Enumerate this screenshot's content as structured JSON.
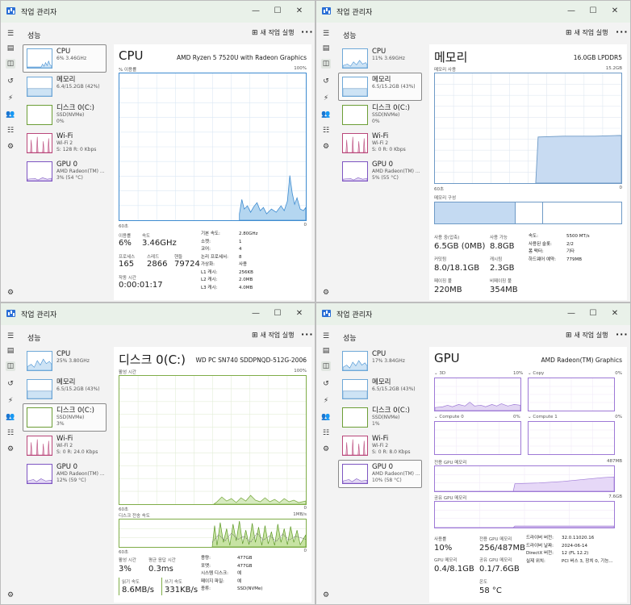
{
  "app_title": "작업 관리자",
  "page_title": "성능",
  "run_task": "새 작업 실행",
  "controls": {
    "minimize": "—",
    "maximize": "☐",
    "close": "✕"
  },
  "more": "···",
  "colors": {
    "cpu": "#3d8bd0",
    "memory": "#6e9ac6",
    "disk": "#7fad48",
    "wifi": "#b9477a",
    "gpu": "#9e79d6"
  },
  "panes": [
    {
      "sidebar": [
        {
          "name": "CPU",
          "sub1": "6% 3.46GHz",
          "sub2": ""
        },
        {
          "name": "메모리",
          "sub1": "6.4/15.2GB (42%)",
          "sub2": ""
        },
        {
          "name": "디스크 0(C:)",
          "sub1": "SSD(NVMe)",
          "sub2": "0%"
        },
        {
          "name": "Wi-Fi",
          "sub1": "Wi-Fi 2",
          "sub2": "S: 128 R: 0 Kbps"
        },
        {
          "name": "GPU 0",
          "sub1": "AMD Radeon(TM) ...",
          "sub2": "3% (54 °C)"
        }
      ],
      "heading": "CPU",
      "model": "AMD Ryzen 5 7520U with Radeon Graphics",
      "chart_caption_left": "% 이용률",
      "chart_caption_right": "100%",
      "chart_bottom_left": "60초",
      "chart_bottom_right": "0",
      "stats": {
        "util_label": "이용률",
        "util_value": "6%",
        "speed_label": "속도",
        "speed_value": "3.46GHz",
        "proc_label": "프로세스",
        "proc_value": "165",
        "thread_label": "스레드",
        "thread_value": "2866",
        "handle_label": "핸들",
        "handle_value": "79724",
        "uptime_label": "작동 시간",
        "uptime_value": "0:00:01:17"
      },
      "details": [
        {
          "k": "기본 속도:",
          "v": "2.80GHz"
        },
        {
          "k": "소켓:",
          "v": "1"
        },
        {
          "k": "코어:",
          "v": "4"
        },
        {
          "k": "논리 프로세서:",
          "v": "8"
        },
        {
          "k": "가상화:",
          "v": "사용"
        },
        {
          "k": "L1 캐시:",
          "v": "256KB"
        },
        {
          "k": "L2 캐시:",
          "v": "2.0MB"
        },
        {
          "k": "L3 캐시:",
          "v": "4.0MB"
        }
      ]
    },
    {
      "sidebar": [
        {
          "name": "CPU",
          "sub1": "11% 3.69GHz",
          "sub2": ""
        },
        {
          "name": "메모리",
          "sub1": "6.5/15.2GB (43%)",
          "sub2": ""
        },
        {
          "name": "디스크 0(C:)",
          "sub1": "SSD(NVMe)",
          "sub2": "0%"
        },
        {
          "name": "Wi-Fi",
          "sub1": "Wi-Fi 2",
          "sub2": "S: 0 R: 0 Kbps"
        },
        {
          "name": "GPU 0",
          "sub1": "AMD Radeon(TM) ...",
          "sub2": "5% (55 °C)"
        }
      ],
      "heading": "메모리",
      "model": "16.0GB LPDDR5",
      "chart_caption_left": "메모리 사용",
      "chart_caption_right": "15.2GB",
      "chart_bottom_left": "60초",
      "chart_bottom_right": "0",
      "composition_label": "메모리 구성",
      "stats": {
        "inuse_label": "사용 중(압축)",
        "inuse_value": "6.5GB (0MB)",
        "avail_label": "사용 가능",
        "avail_value": "8.8GB",
        "commit_label": "커밋됨",
        "commit_value": "8.0/18.1GB",
        "cached_label": "캐시됨",
        "cached_value": "2.3GB",
        "paged_label": "페이징 풀",
        "paged_value": "220MB",
        "nonpaged_label": "비페이징 풀",
        "nonpaged_value": "354MB"
      },
      "details": [
        {
          "k": "속도:",
          "v": "5500 MT/s"
        },
        {
          "k": "사용된 슬롯:",
          "v": "2/2"
        },
        {
          "k": "폼 팩터:",
          "v": "기타"
        },
        {
          "k": "하드웨어 예약:",
          "v": "779MB"
        }
      ]
    },
    {
      "sidebar": [
        {
          "name": "CPU",
          "sub1": "25% 3.80GHz",
          "sub2": ""
        },
        {
          "name": "메모리",
          "sub1": "6.5/15.2GB (43%)",
          "sub2": ""
        },
        {
          "name": "디스크 0(C:)",
          "sub1": "SSD(NVMe)",
          "sub2": "3%"
        },
        {
          "name": "Wi-Fi",
          "sub1": "Wi-Fi 2",
          "sub2": "S: 0 R: 24.0 Kbps"
        },
        {
          "name": "GPU 0",
          "sub1": "AMD Radeon(TM) ...",
          "sub2": "12% (59 °C)"
        }
      ],
      "heading": "디스크 0(C:)",
      "model": "WD PC SN740 SDDPNQD-512G-2006",
      "chart_caption_left": "활성 시간",
      "chart_caption_right": "100%",
      "chart_bottom_left": "60초",
      "chart_bottom_right": "0",
      "chart2_caption_left": "디스크 전송 속도",
      "chart2_caption_right": "1MB/s",
      "chart2_bottom_left": "60초",
      "chart2_bottom_right": "0",
      "stats": {
        "active_label": "활성 시간",
        "active_value": "3%",
        "resp_label": "평균 응답 시간",
        "resp_value": "0.3ms",
        "read_label": "읽기 속도",
        "read_value": "8.6MB/s",
        "write_label": "쓰기 속도",
        "write_value": "331KB/s"
      },
      "details": [
        {
          "k": "용량:",
          "v": "477GB"
        },
        {
          "k": "포맷:",
          "v": "477GB"
        },
        {
          "k": "시스템 디스크:",
          "v": "예"
        },
        {
          "k": "페이지 파일:",
          "v": "예"
        },
        {
          "k": "종류:",
          "v": "SSD(NVMe)"
        }
      ]
    },
    {
      "sidebar": [
        {
          "name": "CPU",
          "sub1": "17% 3.84GHz",
          "sub2": ""
        },
        {
          "name": "메모리",
          "sub1": "6.5/15.2GB (43%)",
          "sub2": ""
        },
        {
          "name": "디스크 0(C:)",
          "sub1": "SSD(NVMe)",
          "sub2": "1%"
        },
        {
          "name": "Wi-Fi",
          "sub1": "Wi-Fi 2",
          "sub2": "S: 0 R: 8.0 Kbps"
        },
        {
          "name": "GPU 0",
          "sub1": "AMD Radeon(TM) ...",
          "sub2": "10% (58 °C)"
        }
      ],
      "heading": "GPU",
      "model": "AMD Radeon(TM) Graphics",
      "engines": [
        {
          "label": "3D",
          "pct": "10%"
        },
        {
          "label": "Copy",
          "pct": "0%"
        },
        {
          "label": "Compute 0",
          "pct": "0%"
        },
        {
          "label": "Compute 1",
          "pct": "0%"
        }
      ],
      "dedicated_label": "전용 GPU 메모리",
      "dedicated_max": "487MB",
      "shared_label": "공유 GPU 메모리",
      "shared_max": "7.6GB",
      "stats": {
        "util_label": "사용률",
        "util_value": "10%",
        "dedi_label": "전용 GPU 메모리",
        "dedi_value": "256/487MB",
        "gpumem_label": "GPU 메모리",
        "gpumem_value": "0.4/8.1GB",
        "shared_label": "공유 GPU 메모리",
        "shared_value": "0.1/7.6GB",
        "temp_label": "온도",
        "temp_value": "58 °C"
      },
      "details": [
        {
          "k": "드라이버 버전:",
          "v": "32.0.11020.16"
        },
        {
          "k": "드라이버 날짜:",
          "v": "2024-06-14"
        },
        {
          "k": "DirectX 버전:",
          "v": "12 (FL 12.2)"
        },
        {
          "k": "실제 위치:",
          "v": "PCI 버스 3, 장치 0, 기능..."
        }
      ]
    }
  ]
}
